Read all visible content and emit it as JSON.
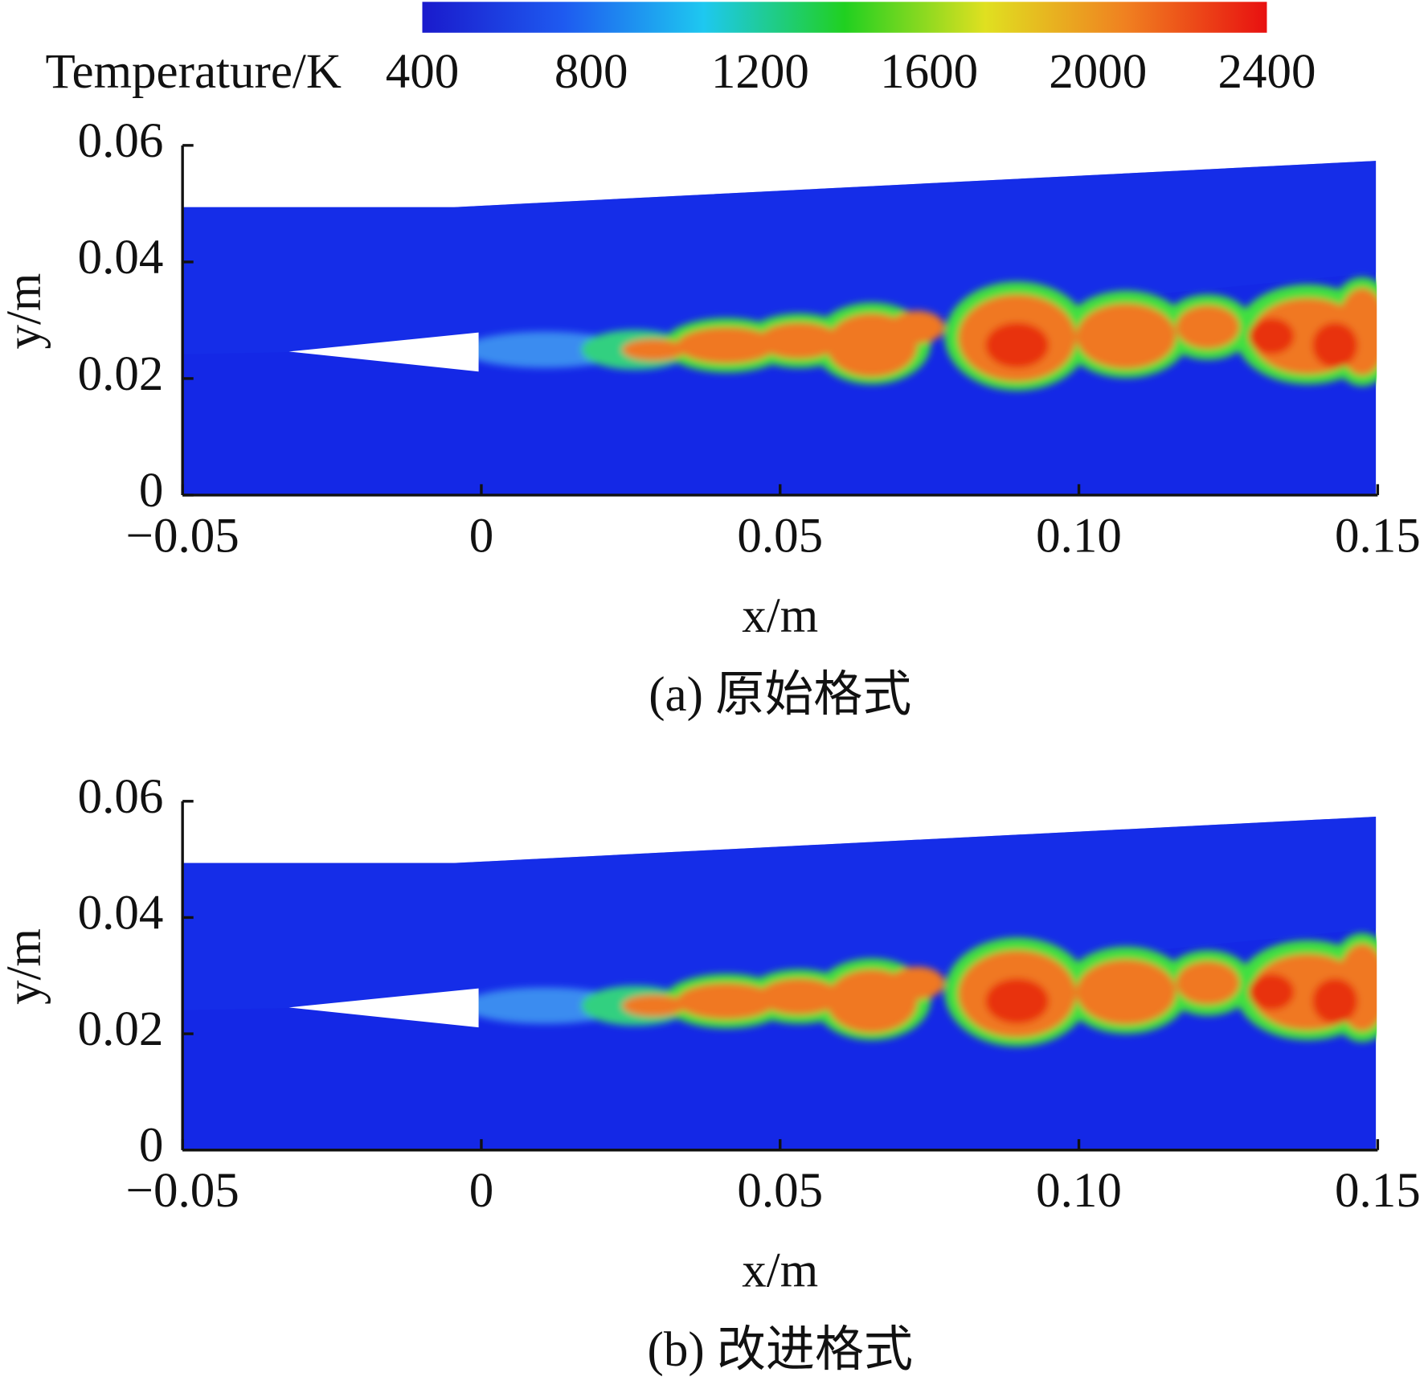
{
  "colorbar": {
    "label": "Temperature/K",
    "lim": [
      400,
      2400
    ],
    "ticks": [
      400,
      800,
      1200,
      1600,
      2000,
      2400
    ],
    "colors": [
      "#1a1acc",
      "#1e5af0",
      "#1ec8f0",
      "#20d020",
      "#e0e020",
      "#f08020",
      "#e81010"
    ]
  },
  "chart_data": [
    {
      "type": "contour",
      "caption": "(a) 原始格式",
      "xlabel": "x/m",
      "ylabel": "y/m",
      "xlim": [
        -0.05,
        0.15
      ],
      "ylim": [
        0,
        0.06
      ],
      "xticks": [
        {
          "value": -0.05,
          "label": "−0.05"
        },
        0,
        0.05,
        {
          "value": 0.1,
          "label": "0.10"
        },
        0.15
      ],
      "yticks": [
        0,
        0.02,
        0.04,
        0.06
      ]
    },
    {
      "type": "contour",
      "caption": "(b) 改进格式",
      "xlabel": "x/m",
      "ylabel": "y/m",
      "xlim": [
        -0.05,
        0.15
      ],
      "ylim": [
        0,
        0.06
      ],
      "xticks": [
        {
          "value": -0.05,
          "label": "−0.05"
        },
        0,
        0.05,
        {
          "value": 0.1,
          "label": "0.10"
        },
        0.15
      ],
      "yticks": [
        0,
        0.02,
        0.04,
        0.06
      ]
    }
  ]
}
